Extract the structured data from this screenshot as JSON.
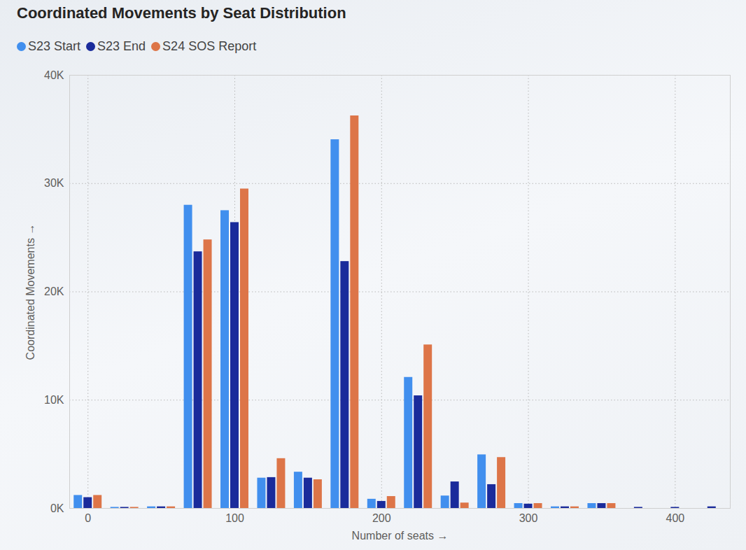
{
  "chart_data": {
    "type": "bar",
    "title": "Coordinated Movements by Seat Distribution",
    "x_label": "Number of seats",
    "y_label": "Coordinated Movements",
    "x": [
      0,
      25,
      50,
      75,
      100,
      125,
      150,
      175,
      200,
      225,
      250,
      275,
      300,
      325,
      350,
      375,
      400,
      425
    ],
    "series": [
      {
        "name": "S23 Start",
        "color": "#418fee",
        "values": [
          1200,
          100,
          150,
          28000,
          27500,
          2800,
          3350,
          34050,
          850,
          12100,
          1150,
          4950,
          450,
          150,
          450,
          0,
          0,
          0
        ]
      },
      {
        "name": "S23 End",
        "color": "#1a2b9b",
        "values": [
          1000,
          100,
          150,
          23700,
          26400,
          2850,
          2800,
          22800,
          650,
          10400,
          2450,
          2200,
          400,
          150,
          450,
          100,
          100,
          150
        ]
      },
      {
        "name": "S24 SOS Report",
        "color": "#dd7548",
        "values": [
          1200,
          100,
          150,
          24800,
          29500,
          4600,
          2650,
          36250,
          1100,
          15100,
          500,
          4700,
          450,
          150,
          450,
          0,
          0,
          0
        ]
      }
    ],
    "xlim": [
      -12.5,
      437.5
    ],
    "xticks": [
      0,
      100,
      200,
      300,
      400
    ],
    "ylim": [
      0,
      40000
    ],
    "yticks": [
      {
        "value": 0,
        "label": "0K"
      },
      {
        "value": 10000,
        "label": "10K"
      },
      {
        "value": 20000,
        "label": "20K"
      },
      {
        "value": 30000,
        "label": "30K"
      },
      {
        "value": 40000,
        "label": "40K"
      }
    ],
    "grid": true,
    "legend": "top-left"
  }
}
